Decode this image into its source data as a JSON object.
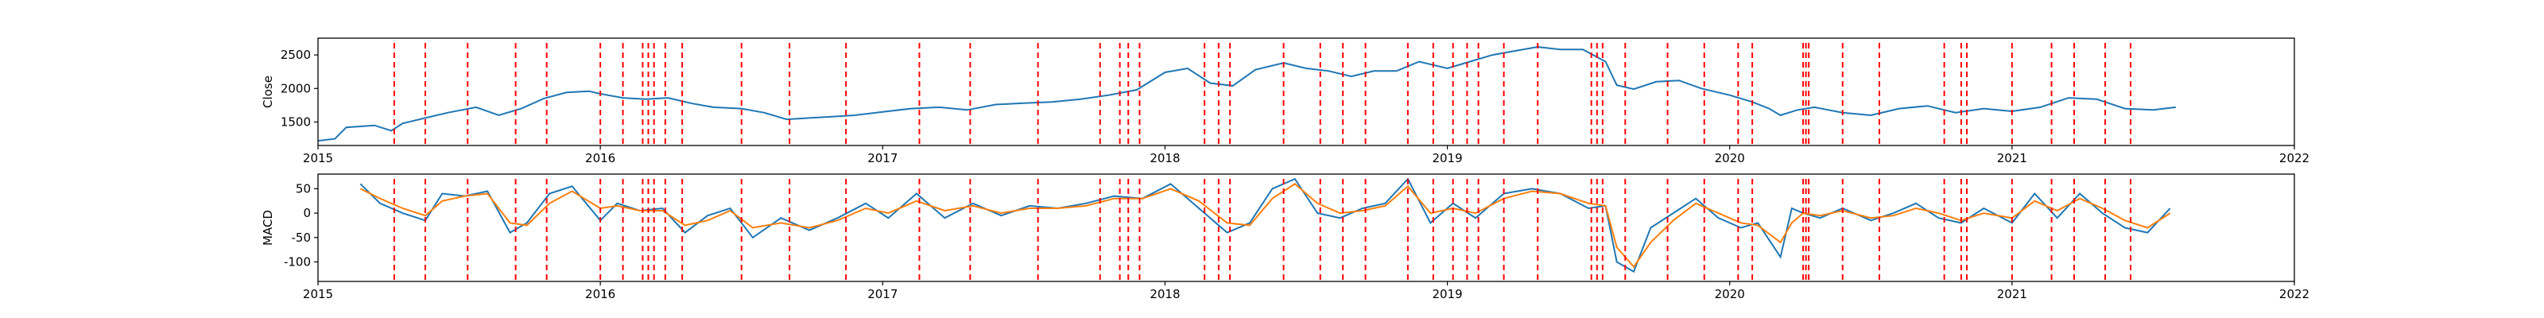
{
  "chart_data": [
    {
      "type": "line",
      "name": "top-panel",
      "title": "",
      "xlabel": "",
      "ylabel": "Close",
      "xlim": [
        2015.0,
        2022.0
      ],
      "ylim": [
        1150,
        2750
      ],
      "x_ticks": [
        2015,
        2016,
        2017,
        2018,
        2019,
        2020,
        2021,
        2022
      ],
      "y_ticks": [
        1500,
        2000,
        2500
      ],
      "series": [
        {
          "color": "#1f77b4",
          "x": [
            2015.0,
            2015.06,
            2015.1,
            2015.2,
            2015.26,
            2015.3,
            2015.38,
            2015.46,
            2015.56,
            2015.64,
            2015.72,
            2015.8,
            2015.88,
            2015.96,
            2016.0,
            2016.08,
            2016.16,
            2016.24,
            2016.32,
            2016.4,
            2016.5,
            2016.58,
            2016.66,
            2016.74,
            2016.82,
            2016.9,
            2017.0,
            2017.1,
            2017.2,
            2017.3,
            2017.4,
            2017.5,
            2017.6,
            2017.7,
            2017.8,
            2017.9,
            2018.0,
            2018.08,
            2018.16,
            2018.24,
            2018.32,
            2018.42,
            2018.5,
            2018.58,
            2018.66,
            2018.74,
            2018.82,
            2018.9,
            2019.0,
            2019.08,
            2019.16,
            2019.24,
            2019.32,
            2019.4,
            2019.48,
            2019.56,
            2019.6,
            2019.66,
            2019.74,
            2019.82,
            2019.9,
            2020.0,
            2020.08,
            2020.14,
            2020.18,
            2020.24,
            2020.3,
            2020.4,
            2020.5,
            2020.6,
            2020.7,
            2020.8,
            2020.9,
            2021.0,
            2021.1,
            2021.2,
            2021.3,
            2021.4,
            2021.5,
            2021.58
          ],
          "values": [
            1220,
            1250,
            1420,
            1450,
            1370,
            1480,
            1560,
            1640,
            1720,
            1600,
            1700,
            1850,
            1940,
            1960,
            1920,
            1860,
            1840,
            1860,
            1780,
            1720,
            1700,
            1640,
            1540,
            1560,
            1580,
            1600,
            1650,
            1700,
            1720,
            1680,
            1760,
            1780,
            1800,
            1840,
            1900,
            1980,
            2240,
            2300,
            2080,
            2040,
            2280,
            2380,
            2300,
            2260,
            2180,
            2260,
            2260,
            2400,
            2300,
            2400,
            2500,
            2560,
            2620,
            2580,
            2580,
            2400,
            2050,
            1990,
            2100,
            2120,
            2000,
            1900,
            1800,
            1700,
            1600,
            1680,
            1720,
            1640,
            1600,
            1700,
            1740,
            1640,
            1700,
            1660,
            1720,
            1860,
            1840,
            1700,
            1680,
            1720
          ]
        }
      ],
      "vlines": [
        2015.27,
        2015.38,
        2015.53,
        2015.7,
        2015.81,
        2016.0,
        2016.08,
        2016.15,
        2016.17,
        2016.19,
        2016.23,
        2016.29,
        2016.5,
        2016.67,
        2016.87,
        2017.13,
        2017.31,
        2017.55,
        2017.77,
        2017.84,
        2017.87,
        2017.91,
        2018.14,
        2018.19,
        2018.23,
        2018.42,
        2018.55,
        2018.63,
        2018.71,
        2018.86,
        2018.95,
        2019.02,
        2019.07,
        2019.11,
        2019.2,
        2019.32,
        2019.51,
        2019.53,
        2019.55,
        2019.63,
        2019.78,
        2019.91,
        2020.03,
        2020.08,
        2020.26,
        2020.27,
        2020.28,
        2020.4,
        2020.53,
        2020.76,
        2020.82,
        2020.84,
        2021.0,
        2021.14,
        2021.22,
        2021.33,
        2021.42
      ]
    },
    {
      "type": "line",
      "name": "bottom-panel",
      "title": "",
      "xlabel": "",
      "ylabel": "MACD",
      "xlim": [
        2015.0,
        2022.0
      ],
      "ylim": [
        -140,
        80
      ],
      "x_ticks": [
        2015,
        2016,
        2017,
        2018,
        2019,
        2020,
        2021,
        2022
      ],
      "y_ticks": [
        50,
        0,
        -50,
        -100
      ],
      "series": [
        {
          "color": "#1f77b4",
          "x": [
            2015.15,
            2015.22,
            2015.3,
            2015.38,
            2015.44,
            2015.52,
            2015.6,
            2015.68,
            2015.74,
            2015.82,
            2015.9,
            2016.0,
            2016.06,
            2016.14,
            2016.22,
            2016.3,
            2016.38,
            2016.46,
            2016.54,
            2016.64,
            2016.74,
            2016.84,
            2016.94,
            2017.02,
            2017.12,
            2017.22,
            2017.32,
            2017.42,
            2017.52,
            2017.62,
            2017.72,
            2017.82,
            2017.92,
            2018.02,
            2018.12,
            2018.22,
            2018.3,
            2018.38,
            2018.46,
            2018.54,
            2018.62,
            2018.7,
            2018.78,
            2018.86,
            2018.94,
            2019.02,
            2019.1,
            2019.2,
            2019.3,
            2019.4,
            2019.5,
            2019.56,
            2019.6,
            2019.66,
            2019.72,
            2019.8,
            2019.88,
            2019.96,
            2020.04,
            2020.1,
            2020.18,
            2020.22,
            2020.26,
            2020.32,
            2020.4,
            2020.5,
            2020.58,
            2020.66,
            2020.74,
            2020.82,
            2020.9,
            2021.0,
            2021.08,
            2021.16,
            2021.24,
            2021.32,
            2021.4,
            2021.48,
            2021.56
          ],
          "values": [
            60,
            20,
            0,
            -15,
            40,
            35,
            45,
            -40,
            -20,
            40,
            55,
            -15,
            20,
            5,
            10,
            -40,
            -5,
            10,
            -50,
            -10,
            -35,
            -10,
            20,
            -10,
            40,
            -10,
            20,
            -5,
            15,
            10,
            20,
            35,
            30,
            60,
            10,
            -40,
            -20,
            50,
            70,
            0,
            -10,
            10,
            20,
            70,
            -20,
            20,
            -10,
            40,
            50,
            40,
            10,
            15,
            -100,
            -120,
            -30,
            0,
            30,
            -10,
            -30,
            -20,
            -90,
            10,
            0,
            -10,
            10,
            -15,
            0,
            20,
            -10,
            -20,
            10,
            -20,
            40,
            -10,
            40,
            0,
            -30,
            -40,
            10
          ]
        },
        {
          "color": "#ff7f0e",
          "x": [
            2015.15,
            2015.22,
            2015.3,
            2015.38,
            2015.44,
            2015.52,
            2015.6,
            2015.68,
            2015.74,
            2015.82,
            2015.9,
            2016.0,
            2016.06,
            2016.14,
            2016.22,
            2016.3,
            2016.38,
            2016.46,
            2016.54,
            2016.64,
            2016.74,
            2016.84,
            2016.94,
            2017.02,
            2017.12,
            2017.22,
            2017.32,
            2017.42,
            2017.52,
            2017.62,
            2017.72,
            2017.82,
            2017.92,
            2018.02,
            2018.12,
            2018.22,
            2018.3,
            2018.38,
            2018.46,
            2018.54,
            2018.62,
            2018.7,
            2018.78,
            2018.86,
            2018.94,
            2019.02,
            2019.1,
            2019.2,
            2019.3,
            2019.4,
            2019.5,
            2019.56,
            2019.6,
            2019.66,
            2019.72,
            2019.8,
            2019.88,
            2019.96,
            2020.04,
            2020.1,
            2020.18,
            2020.22,
            2020.26,
            2020.32,
            2020.4,
            2020.5,
            2020.58,
            2020.66,
            2020.74,
            2020.82,
            2020.9,
            2021.0,
            2021.08,
            2021.16,
            2021.24,
            2021.32,
            2021.4,
            2021.48,
            2021.56
          ],
          "values": [
            50,
            30,
            10,
            -5,
            25,
            35,
            40,
            -20,
            -25,
            20,
            45,
            10,
            15,
            5,
            5,
            -25,
            -15,
            5,
            -30,
            -20,
            -30,
            -15,
            10,
            0,
            25,
            5,
            15,
            0,
            10,
            10,
            15,
            30,
            30,
            50,
            25,
            -20,
            -25,
            30,
            60,
            20,
            0,
            5,
            15,
            55,
            0,
            10,
            0,
            30,
            45,
            40,
            20,
            15,
            -70,
            -110,
            -60,
            -15,
            20,
            0,
            -20,
            -25,
            -60,
            -20,
            0,
            -5,
            5,
            -10,
            -5,
            10,
            0,
            -15,
            0,
            -10,
            25,
            5,
            30,
            10,
            -15,
            -30,
            0
          ]
        }
      ],
      "vlines": [
        2015.27,
        2015.38,
        2015.53,
        2015.7,
        2015.81,
        2016.0,
        2016.08,
        2016.15,
        2016.17,
        2016.19,
        2016.23,
        2016.29,
        2016.5,
        2016.67,
        2016.87,
        2017.13,
        2017.31,
        2017.55,
        2017.77,
        2017.84,
        2017.87,
        2017.91,
        2018.14,
        2018.19,
        2018.23,
        2018.42,
        2018.55,
        2018.63,
        2018.71,
        2018.86,
        2018.95,
        2019.02,
        2019.07,
        2019.11,
        2019.2,
        2019.32,
        2019.51,
        2019.53,
        2019.55,
        2019.63,
        2019.78,
        2019.91,
        2020.03,
        2020.08,
        2020.26,
        2020.27,
        2020.28,
        2020.4,
        2020.53,
        2020.76,
        2020.82,
        2020.84,
        2021.0,
        2021.14,
        2021.22,
        2021.33,
        2021.42
      ]
    }
  ],
  "colors": {
    "vline": "#ff0000",
    "axes": "#000000",
    "background": "#ffffff"
  }
}
